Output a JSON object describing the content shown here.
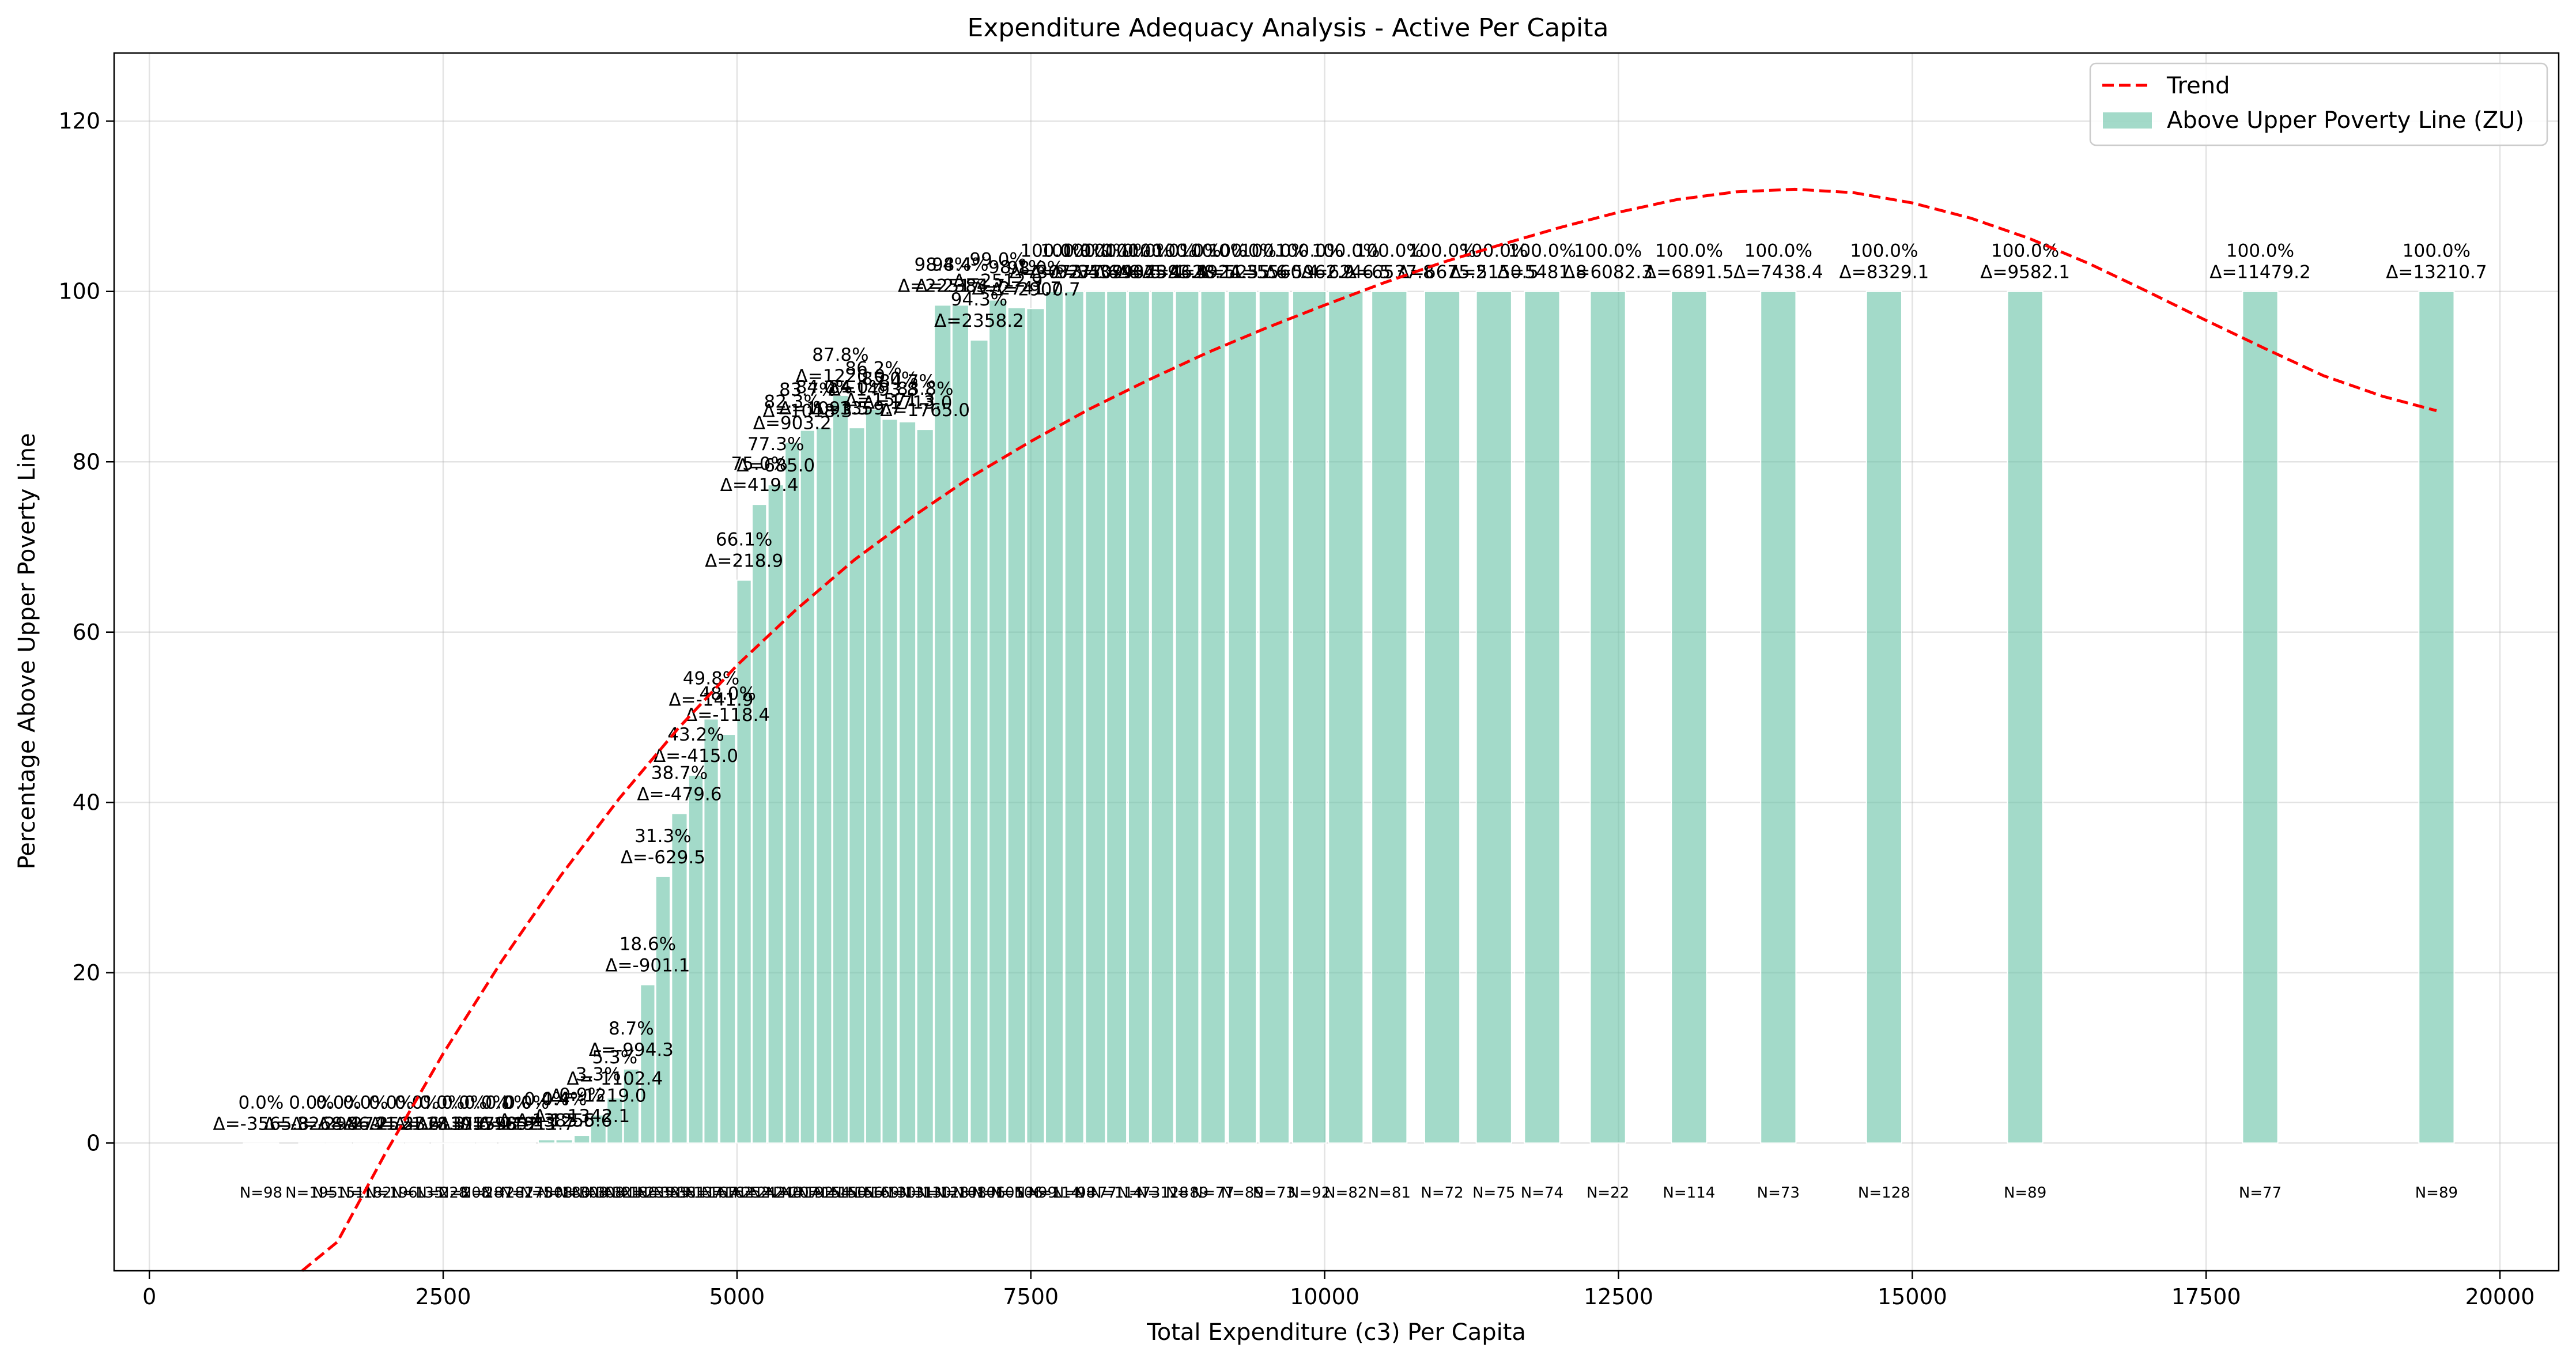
{
  "chart_data": {
    "type": "bar",
    "title": "Expenditure Adequacy Analysis - Active Per Capita",
    "xlabel": "Total Expenditure (c3) Per Capita",
    "ylabel": "Percentage Above Upper Poverty Line",
    "xlim": [
      -300,
      20500
    ],
    "ylim": [
      -15,
      128
    ],
    "xticks": [
      0,
      2500,
      5000,
      7500,
      10000,
      12500,
      15000,
      17500,
      20000
    ],
    "yticks": [
      0,
      20,
      40,
      60,
      80,
      100,
      120
    ],
    "grid": true,
    "legend": {
      "placement": "top-right",
      "entries": [
        "Trend",
        "Above Upper Poverty Line (ZU)"
      ]
    },
    "colors": {
      "bar": "#66c2a5",
      "trend": "#ff0000"
    },
    "series": [
      {
        "name": "Above Upper Poverty Line (ZU)",
        "x": [
          950,
          1380,
          1610,
          1840,
          2060,
          2280,
          2490,
          2680,
          2870,
          3050,
          3210,
          3380,
          3530,
          3680,
          3820,
          3960,
          4100,
          4240,
          4370,
          4510,
          4650,
          4780,
          4920,
          5060,
          5190,
          5330,
          5470,
          5600,
          5740,
          5880,
          6020,
          6160,
          6300,
          6450,
          6600,
          6750,
          6900,
          7060,
          7220,
          7380,
          7540,
          7700,
          7870,
          8050,
          8230,
          8420,
          8620,
          8830,
          9050,
          9300,
          9570,
          9870,
          10180,
          10550,
          11000,
          11440,
          11850,
          12410,
          13100,
          13860,
          14760,
          15960,
          17960,
          19460
        ],
        "values": [
          0.0,
          0.0,
          0.0,
          0.0,
          0.0,
          0.0,
          0.0,
          0.0,
          0.0,
          0.0,
          0.0,
          0.4,
          0.4,
          0.9,
          3.3,
          5.3,
          8.7,
          18.6,
          31.3,
          38.7,
          43.2,
          49.8,
          48.0,
          66.1,
          75.0,
          77.3,
          82.3,
          83.7,
          84.0,
          87.8,
          84.0,
          86.2,
          85.0,
          84.7,
          83.8,
          98.4,
          98.4,
          94.3,
          99.0,
          98.1,
          98.0,
          100.0,
          100.0,
          100.0,
          100.0,
          100.0,
          100.0,
          100.0,
          100.0,
          100.0,
          100.0,
          100.0,
          100.0,
          100.0,
          100.0,
          100.0,
          100.0,
          100.0,
          100.0,
          100.0,
          100.0,
          100.0,
          100.0,
          100.0
        ],
        "pct_labels": [
          "0.0%",
          "0.0%",
          "0.0%",
          "0.0%",
          "0.0%",
          "0.0%",
          "0.0%",
          "0.0%",
          "0.0%",
          "0.0%",
          "0.0%",
          "0.4%",
          "0.4%",
          "0.9%",
          "3.3%",
          "5.3%",
          "8.7%",
          "18.6%",
          "31.3%",
          "38.7%",
          "43.2%",
          "49.8%",
          "48.0%",
          "66.1%",
          "75.0%",
          "77.3%",
          "82.3%",
          "83.7%",
          "84.0%",
          "87.8%",
          "84.0%",
          "86.2%",
          "85.0%",
          "84.7%",
          "83.8%",
          "98.4%",
          "98.4%",
          "94.3%",
          "99.0%",
          "98.1%",
          "98.0%",
          "100.0%",
          "100.0%",
          "100.0%",
          "100.0%",
          "100.0%",
          "100.0%",
          "100.0%",
          "100.0%",
          "100.0%",
          "100.0%",
          "100.0%",
          "100.0%",
          "100.0%",
          "100.0%",
          "100.0%",
          "100.0%",
          "100.0%",
          "100.0%",
          "100.0%",
          "100.0%",
          "100.0%",
          "100.0%",
          "100.0%"
        ],
        "delta_labels": [
          "Δ=-3565.8",
          "Δ=-3268.4",
          "Δ=-2986.2",
          "Δ=-2741.5",
          "Δ=-2521.6",
          "Δ=-2318.3",
          "Δ=-2137.6",
          "Δ=-1955.2",
          "Δ=-1798.9",
          "Δ=-1652.3",
          "Δ=-1511.7",
          "Δ=-1385.6",
          "Δ=-1255.6",
          "Δ=-1342.1",
          "Δ=-1219.0",
          "Δ=-1102.4",
          "Δ=-994.3",
          "Δ=-901.1",
          "Δ=-629.5",
          "Δ=-479.6",
          "Δ=-415.0",
          "Δ=-141.9",
          "Δ=-118.4",
          "Δ=218.9",
          "Δ=419.4",
          "Δ=685.0",
          "Δ=903.2",
          "Δ=1018.3",
          "Δ=1093.5",
          "Δ=1220.0",
          "Δ=1359.7",
          "Δ=1493.8",
          "Δ=1571.3",
          "Δ=1713.0",
          "Δ=1765.0",
          "Δ=2251.3",
          "Δ=2384.7",
          "Δ=2358.2",
          "Δ=2512.9",
          "Δ=2741.7",
          "Δ=2900.7",
          "Δ=3073.4",
          "Δ=3277.6",
          "Δ=3509.8",
          "Δ=3793.5",
          "Δ=4075.4",
          "Δ=4393.5",
          "Δ=4628.1",
          "Δ=4924.3",
          "Δ=5255.6",
          "Δ=5560.4",
          "Δ=5962.9",
          "Δ=6246.5",
          "Δ=6537.8",
          "Δ=6675.2",
          "Δ=5150.5",
          "Δ=5481.8",
          "Δ=6082.3",
          "Δ=6891.5",
          "Δ=7438.4",
          "Δ=8329.1",
          "Δ=9582.1",
          "Δ=11479.2",
          "Δ=13210.7"
        ],
        "n_labels": [
          "N=98",
          "N=195",
          "N=151",
          "N=182",
          "N=196",
          "N=135",
          "N=228",
          "N=208",
          "N=287",
          "N=287",
          "N=275",
          "N=308",
          "N=180",
          "N=308",
          "N=308",
          "N=321",
          "N=186",
          "N=235",
          "N=385",
          "N=381",
          "N=137",
          "N=167",
          "N=162",
          "N=252",
          "N=242",
          "N=240",
          "N=207",
          "N=192",
          "N=154",
          "N=150",
          "N=156",
          "N=169",
          "N=130",
          "N=131",
          "N=130",
          "N=128",
          "N=108",
          "N=106",
          "N=105",
          "N=106",
          "N=99",
          "N=114",
          "N=98",
          "N=77",
          "N=114",
          "N=73",
          "N=128",
          "N=89",
          "N=77",
          "N=89",
          "N=73",
          "N=92",
          "N=82",
          "N=81",
          "N=72",
          "N=75",
          "N=74",
          "N=22",
          "N=114",
          "N=73",
          "N=128",
          "N=89",
          "N=77",
          "N=89"
        ]
      }
    ],
    "trend": {
      "name": "Trend",
      "x": [
        1300,
        1600,
        2000,
        2500,
        3000,
        3500,
        4000,
        4500,
        5000,
        5500,
        6000,
        6500,
        7000,
        7500,
        8000,
        8500,
        9000,
        9500,
        10000,
        10500,
        11000,
        11500,
        12000,
        12500,
        13000,
        13500,
        14000,
        14500,
        15000,
        15500,
        16000,
        16500,
        17000,
        17500,
        18000,
        18500,
        19000,
        19460
      ],
      "y": [
        -20,
        -11.6,
        -1.4,
        10.5,
        21.4,
        31.4,
        40.5,
        48.7,
        56.1,
        62.6,
        68.5,
        73.6,
        78.3,
        82.4,
        86.2,
        89.6,
        92.8,
        95.7,
        98.4,
        101.0,
        103.4,
        105.5,
        107.5,
        109.3,
        110.8,
        111.7,
        112.0,
        111.6,
        110.4,
        108.6,
        106.2,
        103.3,
        100.0,
        96.6,
        93.3,
        90.1,
        87.7,
        86.0
      ]
    }
  }
}
